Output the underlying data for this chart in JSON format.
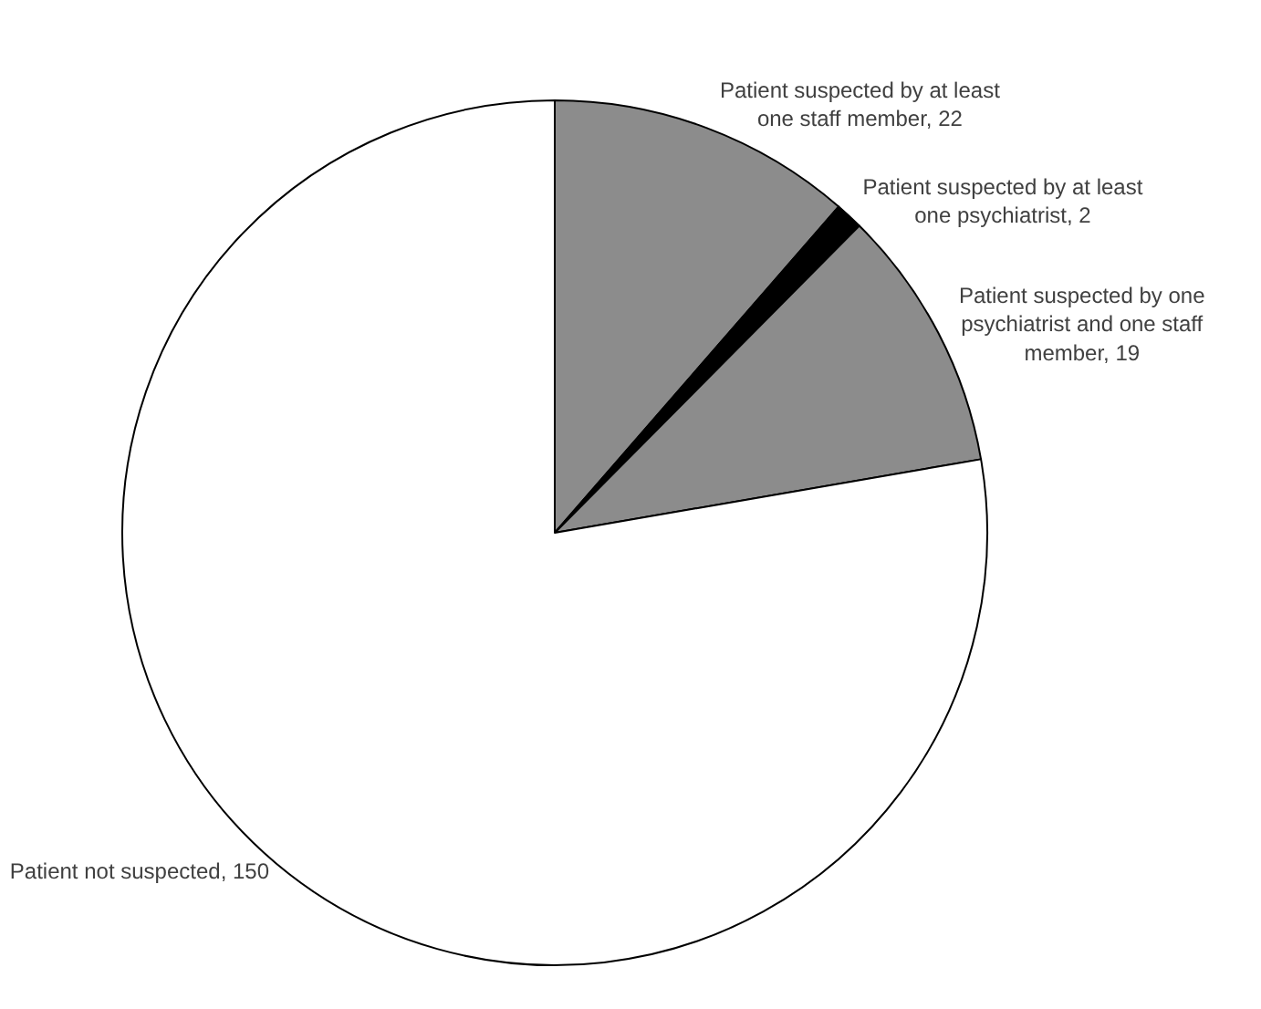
{
  "chart_data": {
    "type": "pie",
    "categories": [
      "Patient suspected by at least one staff member, 22",
      "Patient suspected by at least one psychiatrist, 2",
      "Patient suspected by one psychiatrist and one staff member, 19",
      "Patient not suspected, 150"
    ],
    "values": [
      22,
      2,
      19,
      150
    ],
    "colors": [
      "#8c8c8c",
      "#000000",
      "#8c8c8c",
      "#ffffff"
    ],
    "legend": false
  }
}
